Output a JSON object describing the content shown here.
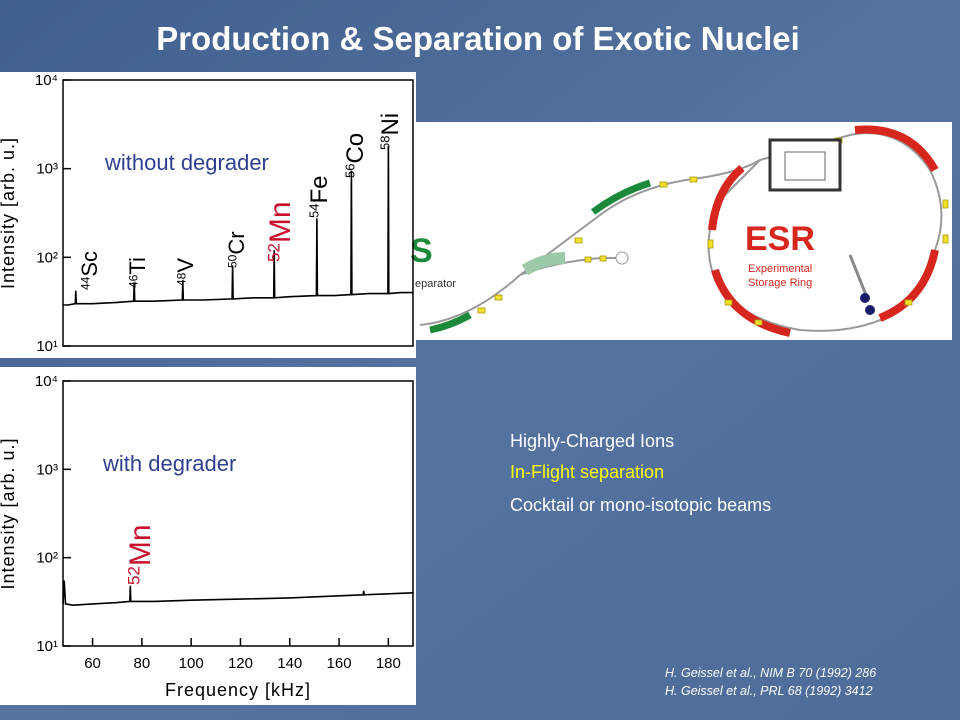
{
  "title": "Production & Separation of Exotic Nuclei",
  "bullets": [
    "Highly-Charged Ions",
    "In-Flight separation",
    "Cocktail or mono-isotopic beams"
  ],
  "references": [
    "H. Geissel et al., NIM B 70 (1992) 286",
    "H. Geissel et al., PRL 68 (1992) 3412"
  ],
  "diagram": {
    "separator_letter": "S",
    "separator_text": "eparator",
    "ring_name": "ESR",
    "ring_line1": "Experimental",
    "ring_line2": "Storage Ring"
  },
  "chart_data": [
    {
      "type": "line",
      "ylabel": "Intensity [arb. u.]",
      "log_y": true,
      "color": "#000000",
      "xlim": [
        48,
        190
      ],
      "ylim": [
        10,
        10000
      ],
      "yticks": [
        {
          "value": 10,
          "label": "10¹"
        },
        {
          "value": 100,
          "label": "10²"
        },
        {
          "value": 1000,
          "label": "10³"
        },
        {
          "value": 10000,
          "label": "10⁴"
        }
      ],
      "x": [
        48,
        50,
        53,
        53.2,
        53.4,
        60,
        70,
        76.7,
        76.9,
        77.1,
        85,
        96.4,
        96.6,
        96.8,
        105,
        116.6,
        116.8,
        117,
        125,
        133.5,
        133.7,
        133.9,
        140,
        150.8,
        151,
        151.2,
        158,
        164.8,
        165,
        165.2,
        172,
        179.8,
        180,
        180.2,
        185,
        190
      ],
      "values": [
        29,
        29,
        30,
        42,
        30,
        30,
        31,
        32,
        52,
        32,
        32,
        33,
        55,
        33,
        33,
        34,
        81,
        34,
        35,
        35,
        120,
        35,
        36,
        37,
        275,
        37,
        37,
        38,
        950,
        38,
        39,
        39,
        1800,
        39,
        40,
        40
      ],
      "annotation": "without degrader",
      "annotation_color": "#2f3f8f",
      "peak_labels": [
        {
          "mass": "44",
          "symbol": "Sc",
          "color": "#000000"
        },
        {
          "mass": "46",
          "symbol": "Ti",
          "color": "#000000"
        },
        {
          "mass": "48",
          "symbol": "V",
          "color": "#000000"
        },
        {
          "mass": "50",
          "symbol": "Cr",
          "color": "#000000"
        },
        {
          "mass": "52",
          "symbol": "Mn",
          "color": "#c8102e"
        },
        {
          "mass": "54",
          "symbol": "Fe",
          "color": "#000000"
        },
        {
          "mass": "56",
          "symbol": "Co",
          "color": "#000000"
        },
        {
          "mass": "58",
          "symbol": "Ni",
          "color": "#000000"
        }
      ]
    },
    {
      "type": "line",
      "ylabel": "Intensity [arb. u.]",
      "xlabel": "Frequency [kHz]",
      "log_y": true,
      "color": "#000000",
      "xlim": [
        48,
        190
      ],
      "ylim": [
        10,
        10000
      ],
      "xticks": [
        60,
        80,
        100,
        120,
        140,
        160,
        180
      ],
      "yticks": [
        {
          "value": 10,
          "label": "10¹"
        },
        {
          "value": 100,
          "label": "10²"
        },
        {
          "value": 1000,
          "label": "10³"
        },
        {
          "value": 10000,
          "label": "10⁴"
        }
      ],
      "x": [
        48,
        48.5,
        49,
        52,
        60,
        70,
        75.1,
        75.3,
        75.5,
        85,
        100,
        120,
        140,
        160,
        169.8,
        170,
        170.2,
        180,
        190
      ],
      "values": [
        30,
        55,
        30,
        29,
        30,
        31,
        32,
        48,
        32,
        32,
        33,
        34,
        35,
        37,
        38,
        42,
        38,
        39,
        40
      ],
      "annotation": "with degrader",
      "annotation_color": "#2f3f8f",
      "peak_labels": [
        {
          "mass": "52",
          "symbol": "Mn",
          "color": "#c8102e"
        }
      ]
    }
  ]
}
